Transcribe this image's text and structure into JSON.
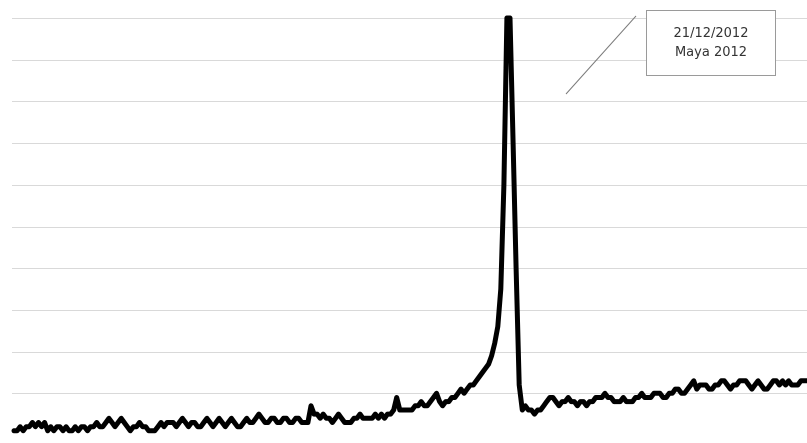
{
  "chart_data": {
    "type": "line",
    "title": "",
    "xlabel": "",
    "ylabel": "",
    "ylim": [
      0,
      100
    ],
    "grid": true,
    "y_gridlines": [
      10,
      20,
      30,
      40,
      50,
      60,
      70,
      80,
      90,
      100
    ],
    "legend": "none",
    "series": [
      {
        "color": "#000000",
        "values": [
          1,
          1,
          2,
          1,
          2,
          2,
          3,
          2,
          3,
          2,
          3,
          1,
          2,
          1,
          2,
          2,
          1,
          2,
          1,
          1,
          2,
          1,
          2,
          2,
          1,
          2,
          2,
          3,
          2,
          2,
          3,
          4,
          3,
          2,
          3,
          4,
          3,
          2,
          1,
          2,
          2,
          3,
          2,
          2,
          1,
          1,
          1,
          2,
          3,
          2,
          3,
          3,
          3,
          2,
          3,
          4,
          3,
          2,
          3,
          3,
          2,
          2,
          3,
          4,
          3,
          2,
          3,
          4,
          3,
          2,
          3,
          4,
          3,
          2,
          2,
          3,
          4,
          3,
          3,
          4,
          5,
          4,
          3,
          3,
          4,
          4,
          3,
          3,
          4,
          4,
          3,
          3,
          4,
          4,
          3,
          3,
          3,
          7,
          5,
          5,
          4,
          5,
          4,
          4,
          3,
          4,
          5,
          4,
          3,
          3,
          3,
          4,
          4,
          5,
          4,
          4,
          4,
          4,
          5,
          4,
          5,
          4,
          5,
          5,
          6,
          9,
          6,
          6,
          6,
          6,
          6,
          7,
          7,
          8,
          7,
          7,
          8,
          9,
          10,
          8,
          7,
          8,
          8,
          9,
          9,
          10,
          11,
          10,
          11,
          12,
          12,
          13,
          14,
          15,
          16,
          17,
          19,
          22,
          26,
          35,
          60,
          100,
          100,
          70,
          40,
          12,
          6,
          7,
          6,
          6,
          5,
          6,
          6,
          7,
          8,
          9,
          9,
          8,
          7,
          8,
          8,
          9,
          8,
          8,
          7,
          8,
          8,
          7,
          8,
          8,
          9,
          9,
          9,
          10,
          9,
          9,
          8,
          8,
          8,
          9,
          8,
          8,
          8,
          9,
          9,
          10,
          9,
          9,
          9,
          10,
          10,
          10,
          9,
          9,
          10,
          10,
          11,
          11,
          10,
          10,
          11,
          12,
          13,
          11,
          12,
          12,
          12,
          11,
          11,
          12,
          12,
          13,
          13,
          12,
          11,
          12,
          12,
          13,
          13,
          13,
          12,
          11,
          12,
          13,
          12,
          11,
          11,
          12,
          13,
          13,
          12,
          13,
          12,
          13,
          12,
          12,
          12,
          13,
          13,
          13
        ]
      }
    ],
    "annotations": [
      {
        "label_lines": [
          "21/12/2012",
          "Maya 2012"
        ],
        "target_value": 100
      }
    ]
  }
}
